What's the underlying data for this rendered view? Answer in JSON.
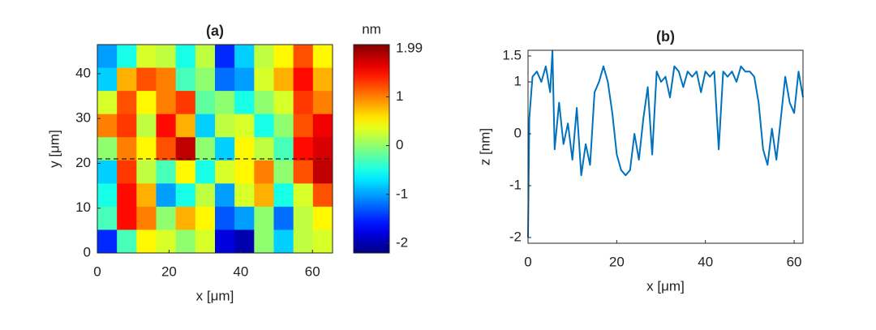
{
  "chart_data": [
    {
      "type": "heatmap",
      "title": "(a)",
      "x_label": "x  [μm]",
      "y_label": "y  [μm]",
      "colormap": "jet",
      "colorbar_label": "nm",
      "xlim": [
        0,
        65.6
      ],
      "ylim": [
        0,
        46.5
      ],
      "xticks": [
        0,
        20,
        40,
        60
      ],
      "yticks": [
        0,
        10,
        20,
        30,
        40
      ],
      "clim": [
        -2.2,
        2.07
      ],
      "cticks": [
        1.99,
        1,
        0,
        -1,
        -2
      ],
      "line_y": 21,
      "z": [
        [
          -1.0,
          -0.5,
          0.3,
          0.2,
          -0.5,
          0.2,
          -1.5,
          -0.8,
          0.2,
          0.5,
          1.2,
          0.5
        ],
        [
          -0.8,
          0.8,
          1.2,
          1.0,
          -0.3,
          0.0,
          -1.2,
          -1.0,
          0.3,
          0.8,
          1.5,
          0.8
        ],
        [
          0.3,
          1.2,
          0.5,
          1.0,
          1.3,
          -0.2,
          0.0,
          -0.5,
          0.0,
          0.3,
          1.3,
          1.0
        ],
        [
          1.0,
          1.3,
          0.2,
          1.5,
          0.8,
          -0.8,
          0.2,
          0.3,
          -0.5,
          0.0,
          1.2,
          1.6
        ],
        [
          0.0,
          1.0,
          0.5,
          1.2,
          1.8,
          0.0,
          -0.8,
          0.5,
          0.2,
          -0.3,
          1.5,
          1.7
        ],
        [
          -0.8,
          1.3,
          0.2,
          -0.3,
          0.5,
          -0.5,
          0.3,
          0.5,
          1.0,
          0.0,
          1.2,
          1.8
        ],
        [
          -0.5,
          1.5,
          0.8,
          -1.0,
          -0.5,
          0.2,
          -1.0,
          0.3,
          0.8,
          -0.5,
          0.3,
          1.2
        ],
        [
          -0.3,
          1.5,
          1.0,
          0.0,
          0.8,
          0.5,
          -1.3,
          -1.0,
          0.0,
          -1.2,
          0.2,
          0.5
        ],
        [
          -1.5,
          -0.3,
          0.5,
          0.3,
          0.0,
          0.3,
          -1.8,
          -2.0,
          0.0,
          -0.8,
          0.2,
          0.3
        ]
      ]
    },
    {
      "type": "line",
      "title": "(b)",
      "x_label": "x  [μm]",
      "y_label": "z  [nm]",
      "color": "#0072bd",
      "xlim": [
        0,
        62
      ],
      "ylim": [
        -2.11,
        1.61
      ],
      "xticks": [
        0,
        20,
        40,
        60
      ],
      "yticks": [
        1.5,
        1,
        0,
        -1,
        -2
      ],
      "x": [
        0,
        0.3,
        1,
        2,
        3,
        4,
        5,
        5.5,
        6,
        7,
        8,
        9,
        10,
        11,
        12,
        13,
        14,
        15,
        16,
        17,
        18,
        19,
        20,
        21,
        22,
        23,
        24,
        25,
        26,
        27,
        28,
        29,
        30,
        31,
        32,
        33,
        34,
        35,
        36,
        37,
        38,
        39,
        40,
        41,
        42,
        43,
        44,
        45,
        46,
        47,
        48,
        49,
        50,
        51,
        52,
        53,
        54,
        55,
        56,
        57,
        58,
        59,
        60,
        61,
        62
      ],
      "values": [
        -2.0,
        0.3,
        1.1,
        1.2,
        1.0,
        1.3,
        0.8,
        1.6,
        -0.3,
        0.6,
        -0.2,
        0.2,
        -0.5,
        0.5,
        -0.8,
        -0.2,
        -0.6,
        0.8,
        1.0,
        1.3,
        1.0,
        0.4,
        -0.4,
        -0.7,
        -0.8,
        -0.7,
        0.0,
        -0.5,
        0.3,
        0.9,
        -0.4,
        1.2,
        1.0,
        1.1,
        0.7,
        1.3,
        1.2,
        0.9,
        1.2,
        1.1,
        1.2,
        0.8,
        1.2,
        1.1,
        1.2,
        -0.3,
        1.2,
        1.1,
        1.2,
        1.0,
        1.3,
        1.2,
        1.2,
        1.1,
        0.6,
        -0.3,
        -0.6,
        0.1,
        -0.5,
        0.3,
        1.1,
        0.6,
        0.4,
        1.2,
        0.7
      ]
    }
  ]
}
